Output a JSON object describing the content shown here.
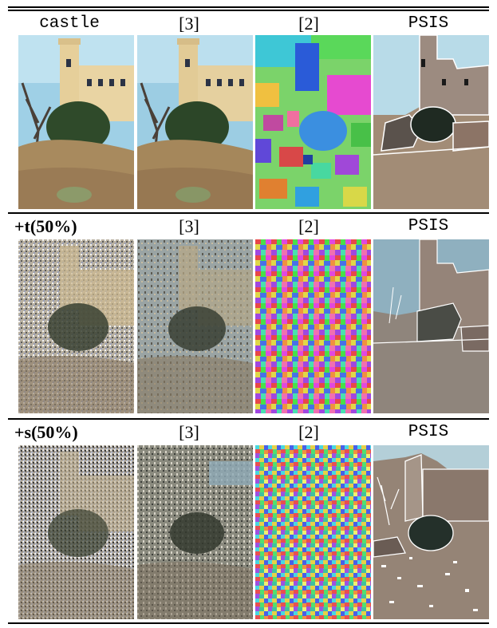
{
  "rows": [
    {
      "label": "castle",
      "col2": "[3]",
      "col3": "[2]",
      "col4": "PSIS"
    },
    {
      "label": "+t(50%)",
      "col2": "[3]",
      "col3": "[2]",
      "col4": "PSIS"
    },
    {
      "label": "+s(50%)",
      "col2": "[3]",
      "col3": "[2]",
      "col4": "PSIS"
    }
  ],
  "palette": {
    "sky": "#9fd0e6",
    "wall": "#e6cf9a",
    "tree": "#2f4a2a",
    "grass": "#a88a5e",
    "psis_sky": "#b8dbe8",
    "psis_wall": "#a28c76",
    "psis_dark": "#1f2a22"
  }
}
